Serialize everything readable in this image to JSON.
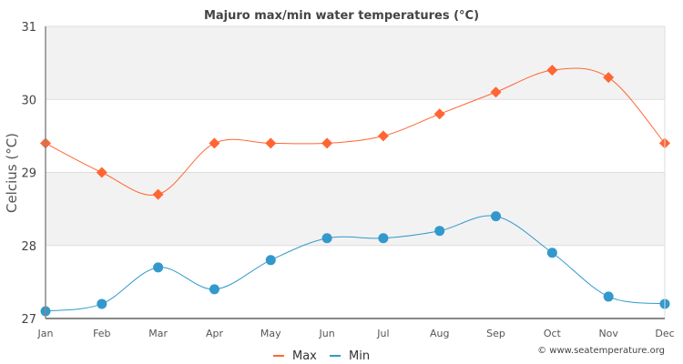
{
  "chart_data": {
    "type": "line",
    "title": "Majuro max/min water temperatures (°C)",
    "xlabel": "",
    "ylabel": "Celcius (°C)",
    "categories": [
      "Jan",
      "Feb",
      "Mar",
      "Apr",
      "May",
      "Jun",
      "Jul",
      "Aug",
      "Sep",
      "Oct",
      "Nov",
      "Dec"
    ],
    "ylim": [
      27,
      31
    ],
    "yticks": [
      "27",
      "28",
      "29",
      "30",
      "31"
    ],
    "grid": true,
    "legend_position": "bottom-center",
    "series": [
      {
        "name": "Max",
        "color": "#ff6633",
        "marker": "diamond",
        "values": [
          29.4,
          29.0,
          28.7,
          29.4,
          29.4,
          29.4,
          29.5,
          29.8,
          30.1,
          30.4,
          30.3,
          29.4
        ]
      },
      {
        "name": "Min",
        "color": "#3399cc",
        "marker": "circle",
        "values": [
          27.1,
          27.2,
          27.7,
          27.4,
          27.8,
          28.1,
          28.1,
          28.2,
          28.4,
          27.9,
          27.3,
          27.2
        ]
      }
    ],
    "credit": "© www.seatemperature.org"
  }
}
